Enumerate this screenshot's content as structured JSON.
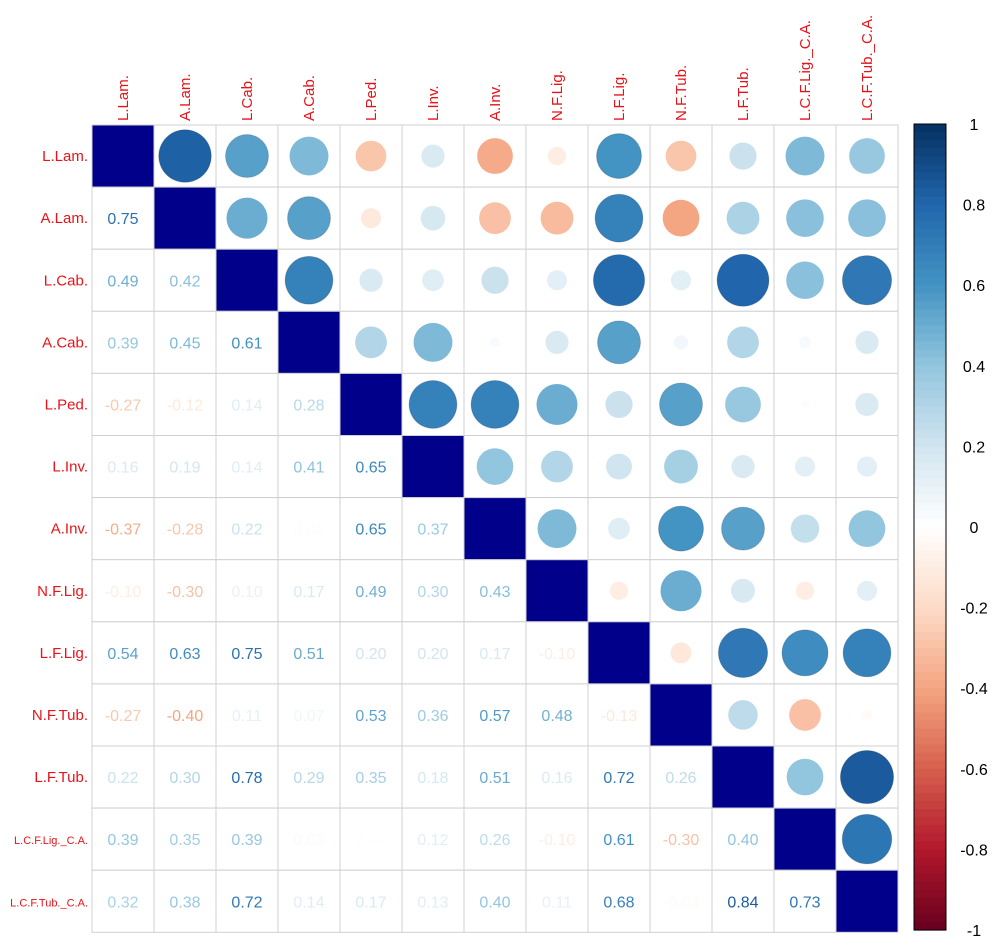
{
  "chart_data": {
    "type": "heatmap",
    "variables": [
      "L.Lam.",
      "A.Lam.",
      "L.Cab.",
      "A.Cab.",
      "L.Ped.",
      "L.Inv.",
      "A.Inv.",
      "N.F.Lig.",
      "L.F.Lig.",
      "N.F.Tub.",
      "L.F.Tub.",
      "L.C.F.Lig._C.A.",
      "L.C.F.Tub._C.A."
    ],
    "lower_triangle_labels": [
      [],
      [
        "0.75"
      ],
      [
        "0.49",
        "0.42"
      ],
      [
        "0.39",
        "0.45",
        "0.61"
      ],
      [
        "-0.27",
        "-0.12",
        "0.14",
        "0.28"
      ],
      [
        "0.16",
        "0.19",
        "0.14",
        "0.41",
        "0.65"
      ],
      [
        "-0.37",
        "-0.28",
        "0.22",
        "0.02",
        "0.65",
        "0.37"
      ],
      [
        "-0.10",
        "-0.30",
        "0.10",
        "0.17",
        "0.49",
        "0.30",
        "0.43"
      ],
      [
        "0.54",
        "0.63",
        "0.75",
        "0.51",
        "0.20",
        "0.20",
        "0.17",
        "-0.10"
      ],
      [
        "-0.27",
        "-0.40",
        "0.11",
        "0.07",
        "0.53",
        "0.36",
        "0.57",
        "0.48",
        "-0.13"
      ],
      [
        "0.22",
        "0.30",
        "0.78",
        "0.29",
        "0.35",
        "0.18",
        "0.51",
        "0.16",
        "0.72",
        "0.26"
      ],
      [
        "0.39",
        "0.35",
        "0.39",
        "0.03",
        "0.01",
        "0.12",
        "0.26",
        "-0.10",
        "0.61",
        "-0.30",
        "0.40"
      ],
      [
        "0.32",
        "0.38",
        "0.72",
        "0.14",
        "0.17",
        "0.13",
        "0.40",
        "0.11",
        "0.68",
        "-0.03",
        "0.84",
        "0.73"
      ]
    ],
    "upper_triangle_circles": [
      [
        null,
        0.82,
        0.55,
        0.45,
        -0.28,
        0.16,
        -0.38,
        -0.1,
        0.6,
        -0.28,
        0.22,
        0.45,
        0.38
      ],
      [
        null,
        null,
        0.5,
        0.55,
        -0.12,
        0.18,
        -0.3,
        -0.32,
        0.68,
        -0.4,
        0.32,
        0.42,
        0.42
      ],
      [
        null,
        null,
        null,
        0.68,
        0.16,
        0.14,
        0.22,
        0.12,
        0.78,
        0.12,
        0.8,
        0.42,
        0.72
      ],
      [
        null,
        null,
        null,
        null,
        0.3,
        0.45,
        0.03,
        0.16,
        0.55,
        0.06,
        0.3,
        0.04,
        0.16
      ],
      [
        null,
        null,
        null,
        null,
        null,
        0.68,
        0.68,
        0.5,
        0.22,
        0.55,
        0.38,
        0.02,
        0.16
      ],
      [
        null,
        null,
        null,
        null,
        null,
        null,
        0.4,
        0.3,
        0.2,
        0.34,
        0.16,
        0.12,
        0.12
      ],
      [
        null,
        null,
        null,
        null,
        null,
        null,
        null,
        0.45,
        0.14,
        0.6,
        0.55,
        0.24,
        0.4
      ],
      [
        null,
        null,
        null,
        null,
        null,
        null,
        null,
        null,
        -0.1,
        0.5,
        0.17,
        -0.1,
        0.12
      ],
      [
        null,
        null,
        null,
        null,
        null,
        null,
        null,
        null,
        null,
        -0.13,
        0.72,
        0.63,
        0.68
      ],
      [
        null,
        null,
        null,
        null,
        null,
        null,
        null,
        null,
        null,
        null,
        0.26,
        -0.3,
        -0.03
      ],
      [
        null,
        null,
        null,
        null,
        null,
        null,
        null,
        null,
        null,
        null,
        null,
        0.4,
        0.84
      ],
      [
        null,
        null,
        null,
        null,
        null,
        null,
        null,
        null,
        null,
        null,
        null,
        null,
        0.73
      ],
      [
        null,
        null,
        null,
        null,
        null,
        null,
        null,
        null,
        null,
        null,
        null,
        null,
        null
      ]
    ],
    "diagonal": 1,
    "colorbar_ticks": [
      "1",
      "0.8",
      "0.6",
      "0.4",
      "0.2",
      "0",
      "-0.2",
      "-0.4",
      "-0.6",
      "-0.8",
      "-1"
    ],
    "colorbar_range": [
      -1,
      1
    ],
    "colors": {
      "label": "#e8131a",
      "grid": "#d0d0d0",
      "diagonal": "#00008b",
      "low": "#67001f",
      "mid": "#ffffff",
      "high": "#053061"
    }
  }
}
